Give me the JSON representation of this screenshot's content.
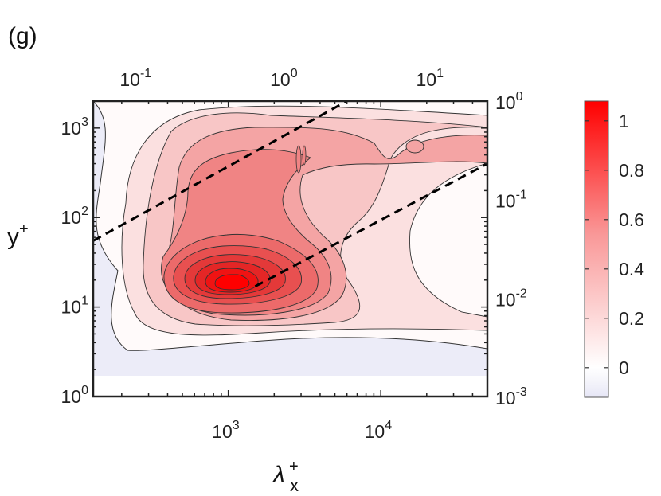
{
  "panel_label": "(g)",
  "colors": {
    "contour_max": "#ff0000",
    "contour_min": "#ffffff",
    "negative": "#ececf8",
    "dashed_line": "#000000"
  },
  "chart_data": {
    "type": "heatmap",
    "subtype": "filled-contour",
    "title": "",
    "xlabel": {
      "main": "λ",
      "sub": "x",
      "sup": "+"
    },
    "ylabel": {
      "main": "y",
      "sup": "+"
    },
    "x_scale": "log",
    "y_scale": "log",
    "xlim": [
      130,
      50000
    ],
    "ylim": [
      1,
      2000
    ],
    "x_ticks": [
      {
        "base": "10",
        "exp": "3",
        "value": 1000
      },
      {
        "base": "10",
        "exp": "4",
        "value": 10000
      }
    ],
    "y_ticks": [
      {
        "base": "10",
        "exp": "0",
        "value": 1
      },
      {
        "base": "10",
        "exp": "1",
        "value": 10
      },
      {
        "base": "10",
        "exp": "2",
        "value": 100
      },
      {
        "base": "10",
        "exp": "3",
        "value": 1000
      }
    ],
    "top_axis": {
      "scale": "log",
      "ticks": [
        {
          "base": "10",
          "exp": "-1",
          "value": 0.1
        },
        {
          "base": "10",
          "exp": "0",
          "value": 1
        },
        {
          "base": "10",
          "exp": "1",
          "value": 10
        }
      ]
    },
    "right_axis": {
      "scale": "log",
      "ticks": [
        {
          "base": "10",
          "exp": "0",
          "value": 1
        },
        {
          "base": "10",
          "exp": "-1",
          "value": 0.1
        },
        {
          "base": "10",
          "exp": "-2",
          "value": 0.01
        },
        {
          "base": "10",
          "exp": "-3",
          "value": 0.001
        }
      ]
    },
    "peak": {
      "x": 1000,
      "y": 17,
      "value": 1.08
    },
    "contour_levels": [
      0.0,
      0.1,
      0.2,
      0.3,
      0.4,
      0.5,
      0.6,
      0.7,
      0.8,
      0.9,
      1.0
    ],
    "dashed_lines": [
      {
        "x": [
          130,
          6000
        ],
        "y": [
          55,
          2000
        ]
      },
      {
        "x": [
          1500,
          50000
        ],
        "y": [
          17,
          400
        ]
      }
    ],
    "colorbar": {
      "range": [
        -0.12,
        1.08
      ],
      "ticks": [
        {
          "label": "0",
          "value": 0
        },
        {
          "label": "0.2",
          "value": 0.2
        },
        {
          "label": "0.4",
          "value": 0.4
        },
        {
          "label": "0.6",
          "value": 0.6
        },
        {
          "label": "0.8",
          "value": 0.8
        },
        {
          "label": "1",
          "value": 1
        }
      ]
    }
  }
}
